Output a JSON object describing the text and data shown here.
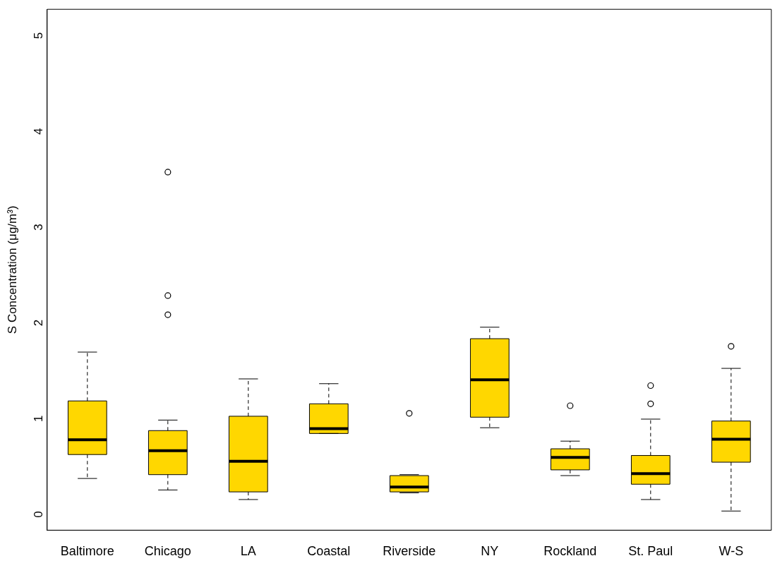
{
  "chart_data": {
    "type": "box",
    "ylabel": "S Concentration (μg/m³)",
    "categories": [
      "Baltimore",
      "Chicago",
      "LA",
      "Coastal",
      "Riverside",
      "NY",
      "Rockland",
      "St. Paul",
      "W-S"
    ],
    "color": "#ffd700",
    "boxes": [
      {
        "low": 0.34,
        "q1": 0.59,
        "median": 0.745,
        "q3": 1.15,
        "high": 1.66
      },
      {
        "low": 0.22,
        "q1": 0.38,
        "median": 0.63,
        "q3": 0.84,
        "high": 0.95,
        "outliers": [
          3.54,
          2.25,
          2.05
        ]
      },
      {
        "low": 0.12,
        "q1": 0.2,
        "median": 0.52,
        "q3": 0.99,
        "high": 1.38
      },
      {
        "low": 0.81,
        "q1": 0.81,
        "median": 0.86,
        "q3": 1.12,
        "high": 1.33
      },
      {
        "low": 0.19,
        "q1": 0.2,
        "median": 0.25,
        "q3": 0.37,
        "high": 0.38,
        "outliers": [
          1.02
        ]
      },
      {
        "low": 0.87,
        "q1": 0.98,
        "median": 1.37,
        "q3": 1.8,
        "high": 1.92
      },
      {
        "low": 0.37,
        "q1": 0.43,
        "median": 0.56,
        "q3": 0.65,
        "high": 0.73,
        "outliers": [
          1.1
        ]
      },
      {
        "low": 0.12,
        "q1": 0.28,
        "median": 0.39,
        "q3": 0.58,
        "high": 0.96,
        "outliers": [
          1.31,
          1.12
        ]
      },
      {
        "low": 0,
        "q1": 0.51,
        "median": 0.75,
        "q3": 0.94,
        "high": 1.49,
        "outliers": [
          1.72
        ]
      }
    ],
    "ylim": [
      -0.2,
      5.24
    ],
    "yticks": [
      0,
      1,
      2,
      3,
      4,
      5
    ],
    "grid": false,
    "legend": false,
    "marker": "circle"
  }
}
